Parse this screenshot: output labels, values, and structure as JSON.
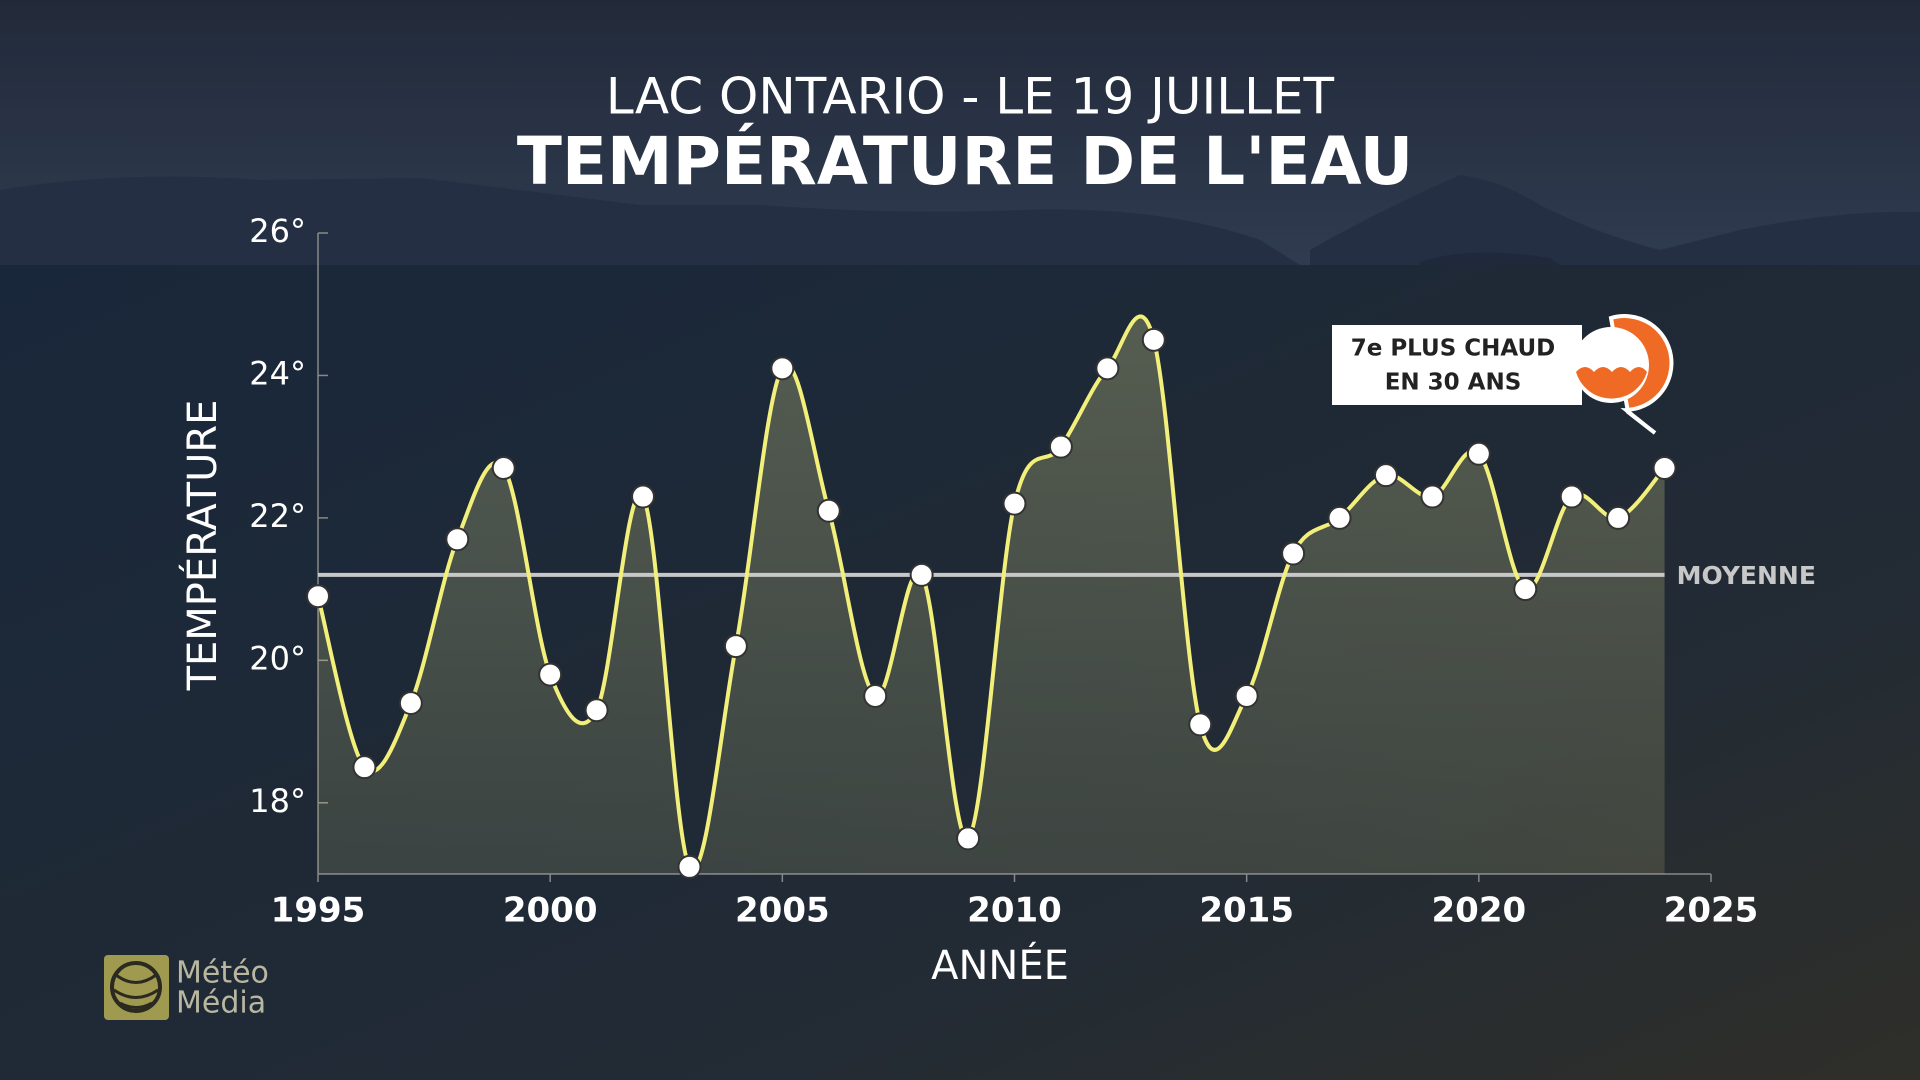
{
  "chart_data": {
    "type": "line",
    "title": "LAC ONTARIO - LE 19 JUILLET",
    "subtitle": "TEMPÉRATURE DE L'EAU",
    "y_label": "TEMPÉRATURE",
    "x_label": "ANNÉE",
    "x": [
      1995,
      1996,
      1997,
      1998,
      1999,
      2000,
      2001,
      2002,
      2003,
      2004,
      2005,
      2006,
      2007,
      2008,
      2009,
      2010,
      2011,
      2012,
      2013,
      2014,
      2015,
      2016,
      2017,
      2018,
      2019,
      2020,
      2021,
      2022,
      2023,
      2024
    ],
    "series": [
      {
        "name": "Température",
        "color": "#f2ef7a",
        "values": [
          20.9,
          18.5,
          19.4,
          21.7,
          22.7,
          19.8,
          19.3,
          22.3,
          17.1,
          20.2,
          24.1,
          22.1,
          19.5,
          21.2,
          17.5,
          22.2,
          23.0,
          24.1,
          24.5,
          19.1,
          19.5,
          21.5,
          22.0,
          22.6,
          22.3,
          22.9,
          21.0,
          22.3,
          22.0,
          22.7
        ]
      }
    ],
    "xlim": [
      1995,
      2025
    ],
    "xticks": [
      1995,
      2000,
      2005,
      2010,
      2015,
      2020,
      2025
    ],
    "ylim": [
      17,
      26
    ],
    "yticks": [
      {
        "value": 18,
        "label": "18°"
      },
      {
        "value": 20,
        "label": "20°"
      },
      {
        "value": 22,
        "label": "22°"
      },
      {
        "value": 24,
        "label": "24°"
      },
      {
        "value": 26,
        "label": "26°"
      }
    ],
    "mean": {
      "label": "MOYENNE",
      "value": 21.2
    },
    "annotation": [
      "7e PLUS CHAUD",
      "EN 30 ANS"
    ],
    "logo": [
      "Météo",
      "Média"
    ]
  }
}
